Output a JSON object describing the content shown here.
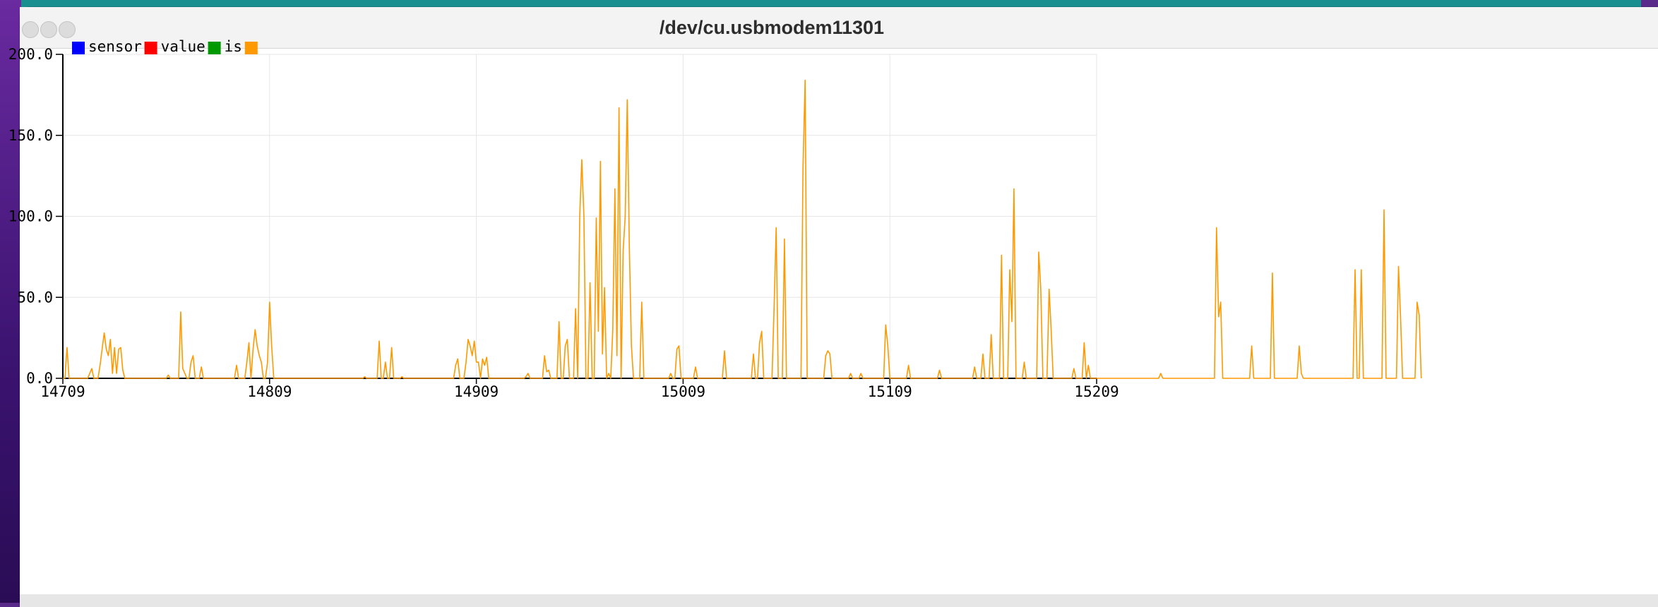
{
  "window": {
    "title": "/dev/cu.usbmodem11301"
  },
  "legend": [
    {
      "label": "sensor",
      "color": "#0000ff"
    },
    {
      "label": "value",
      "color": "#ff0000"
    },
    {
      "label": "is",
      "color": "#009900"
    },
    {
      "label": "",
      "color": "#ff9900"
    }
  ],
  "chart_data": {
    "type": "line",
    "title": "",
    "xlabel": "",
    "ylabel": "",
    "xlim": [
      14709,
      15209
    ],
    "ylim": [
      0,
      200
    ],
    "grid": true,
    "legend_placement": "top-left",
    "x_ticks": [
      "14709",
      "14809",
      "14909",
      "15009",
      "15109",
      "15209"
    ],
    "y_ticks": [
      "0.0",
      "50.0",
      "100.0",
      "150.0",
      "200.0"
    ],
    "series": [
      {
        "name": "sensor",
        "color": "#0000ff",
        "values": []
      },
      {
        "name": "value",
        "color": "#ff0000",
        "values": []
      },
      {
        "name": "is",
        "color": "#009900",
        "values": []
      },
      {
        "color": "#ff9900",
        "x_start": 14709,
        "x_step": 1,
        "values": [
          0,
          0,
          19,
          0,
          0,
          0,
          0,
          0,
          0,
          0,
          0,
          0,
          0,
          3,
          6,
          0,
          0,
          0,
          8,
          18,
          28,
          18,
          14,
          24,
          3,
          19,
          3,
          18,
          19,
          5,
          0,
          0,
          0,
          0,
          0,
          0,
          0,
          0,
          0,
          0,
          0,
          0,
          0,
          0,
          0,
          0,
          0,
          0,
          0,
          0,
          0,
          2,
          0,
          0,
          0,
          0,
          0,
          41,
          6,
          3,
          0,
          0,
          10,
          14,
          0,
          0,
          0,
          7,
          0,
          0,
          0,
          0,
          0,
          0,
          0,
          0,
          0,
          0,
          0,
          0,
          0,
          0,
          0,
          0,
          8,
          0,
          0,
          0,
          0,
          10,
          22,
          0,
          18,
          30,
          20,
          14,
          10,
          0,
          0,
          10,
          47,
          20,
          0,
          0,
          0,
          0,
          0,
          0,
          0,
          0,
          0,
          0,
          0,
          0,
          0,
          0,
          0,
          0,
          0,
          0,
          0,
          0,
          0,
          0,
          0,
          0,
          0,
          0,
          0,
          0,
          0,
          0,
          0,
          0,
          0,
          0,
          0,
          0,
          0,
          0,
          0,
          0,
          0,
          0,
          0,
          0,
          1,
          0,
          0,
          0,
          0,
          0,
          0,
          23,
          0,
          0,
          10,
          0,
          0,
          19,
          0,
          0,
          0,
          0,
          1,
          0,
          0,
          0,
          0,
          0,
          0,
          0,
          0,
          0,
          0,
          0,
          0,
          0,
          0,
          0,
          0,
          0,
          0,
          0,
          0,
          0,
          0,
          0,
          0,
          0,
          8,
          12,
          0,
          0,
          0,
          10,
          24,
          20,
          14,
          23,
          10,
          10,
          0,
          12,
          8,
          13,
          0,
          0,
          0,
          0,
          0,
          0,
          0,
          0,
          0,
          0,
          0,
          0,
          0,
          0,
          0,
          0,
          0,
          0,
          1,
          3,
          0,
          0,
          0,
          0,
          0,
          0,
          0,
          14,
          4,
          5,
          0,
          0,
          0,
          0,
          35,
          0,
          0,
          20,
          24,
          0,
          0,
          0,
          43,
          0,
          100,
          135,
          100,
          0,
          0,
          59,
          0,
          0,
          99,
          29,
          134,
          15,
          56,
          0,
          3,
          0,
          30,
          117,
          14,
          167,
          0,
          79,
          100,
          172,
          80,
          20,
          0,
          0,
          0,
          0,
          47,
          0,
          0,
          0,
          0,
          0,
          0,
          0,
          0,
          0,
          0,
          0,
          0,
          0,
          3,
          0,
          0,
          18,
          20,
          0,
          0,
          0,
          0,
          0,
          0,
          0,
          7,
          0,
          0,
          0,
          0,
          0,
          0,
          0,
          0,
          0,
          0,
          0,
          0,
          0,
          17,
          0,
          0,
          0,
          0,
          0,
          0,
          0,
          0,
          0,
          0,
          0,
          0,
          0,
          15,
          0,
          0,
          22,
          29,
          0,
          0,
          0,
          0,
          0,
          43,
          93,
          0,
          0,
          0,
          86,
          0,
          0,
          0,
          0,
          0,
          0,
          0,
          0,
          130,
          184,
          0,
          0,
          0,
          0,
          0,
          0,
          0,
          0,
          0,
          14,
          17,
          15,
          0,
          0,
          0,
          0,
          0,
          0,
          0,
          0,
          0,
          3,
          0,
          0,
          0,
          0,
          3,
          0,
          0,
          0,
          0,
          0,
          0,
          0,
          0,
          0,
          0,
          0,
          33,
          20,
          0,
          0,
          0,
          0,
          0,
          0,
          0,
          0,
          0,
          8,
          0,
          0,
          0,
          0,
          0,
          0,
          0,
          0,
          0,
          0,
          0,
          0,
          0,
          0,
          5,
          0,
          0,
          0,
          0,
          0,
          0,
          0,
          0,
          0,
          0,
          0,
          0,
          0,
          0,
          0,
          0,
          7,
          0,
          0,
          0,
          15,
          0,
          0,
          0,
          27,
          0,
          0,
          0,
          0,
          76,
          0,
          0,
          0,
          67,
          35,
          117,
          0,
          0,
          0,
          0,
          10,
          0,
          0,
          0,
          0,
          0,
          0,
          78,
          55,
          0,
          0,
          0,
          55,
          30,
          0,
          0,
          0,
          0,
          0,
          0,
          0,
          0,
          0,
          0,
          6,
          0,
          0,
          0,
          0,
          22,
          0,
          8,
          0,
          0,
          0,
          0,
          0,
          0,
          0,
          0,
          0,
          0,
          0,
          0,
          0,
          0,
          0,
          0,
          0,
          0,
          0,
          0,
          0,
          0,
          0,
          0,
          0,
          0,
          0,
          0,
          0,
          0,
          0,
          0,
          0,
          0,
          3,
          0,
          0,
          0,
          0,
          0,
          0,
          0,
          0,
          0,
          0,
          0,
          0,
          0,
          0,
          0,
          0,
          0,
          0,
          0,
          0,
          0,
          0,
          0,
          0,
          0,
          0,
          93,
          38,
          47,
          0,
          0,
          0,
          0,
          0,
          0,
          0,
          0,
          0,
          0,
          0,
          0,
          0,
          0,
          20,
          0,
          0,
          0,
          0,
          0,
          0,
          0,
          0,
          0,
          65,
          0,
          0,
          0,
          0,
          0,
          0,
          0,
          0,
          0,
          0,
          0,
          0,
          20,
          3,
          0,
          0,
          0,
          0,
          0,
          0,
          0,
          0,
          0,
          0,
          0,
          0,
          0,
          0,
          0,
          0,
          0,
          0,
          0,
          0,
          0,
          0,
          0,
          0,
          0,
          67,
          0,
          0,
          67,
          0,
          0,
          0,
          0,
          0,
          0,
          0,
          0,
          0,
          0,
          104,
          0,
          0,
          0,
          0,
          0,
          0,
          69,
          38,
          0,
          0,
          0,
          0,
          0,
          0,
          0,
          47,
          39,
          0
        ]
      }
    ]
  }
}
